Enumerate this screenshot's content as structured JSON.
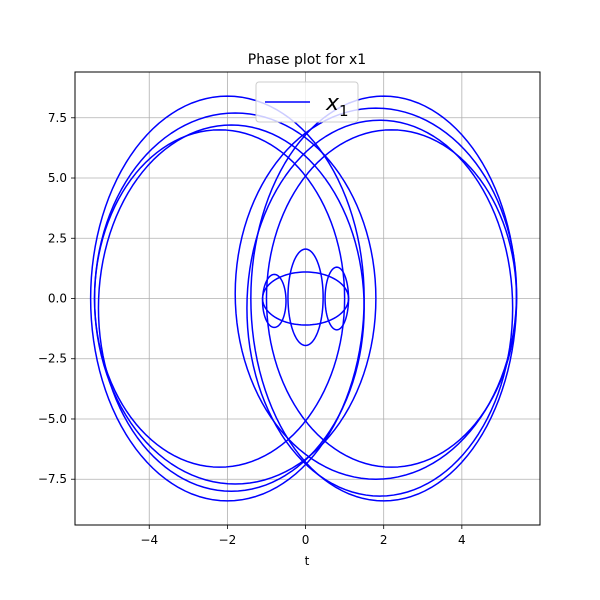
{
  "chart_data": {
    "type": "line",
    "title": "Phase plot for x1",
    "xlabel": "t",
    "ylabel": "",
    "xlim": [
      -5.9,
      6.0
    ],
    "ylim": [
      -9.4,
      9.4
    ],
    "grid": true,
    "legend": {
      "placement": "top-center"
    },
    "x_ticks": [
      -4,
      -2,
      0,
      2,
      4
    ],
    "x_tick_labels": [
      "−4",
      "−2",
      "0",
      "2",
      "4"
    ],
    "y_ticks": [
      -7.5,
      -5.0,
      -2.5,
      0.0,
      2.5,
      5.0,
      7.5
    ],
    "y_tick_labels": [
      "−7.5",
      "−5.0",
      "−2.5",
      "0.0",
      "2.5",
      "5.0",
      "7.5"
    ],
    "series": [
      {
        "name": "x_1",
        "color": "#0000ff",
        "loops": [
          {
            "cx": -2.0,
            "cy": 0.0,
            "rx": 3.5,
            "ry": 8.4
          },
          {
            "cx": -1.8,
            "cy": 0.0,
            "rx": 3.6,
            "ry": 7.7
          },
          {
            "cx": -1.9,
            "cy": -0.4,
            "rx": 3.4,
            "ry": 7.6
          },
          {
            "cx": -2.2,
            "cy": 0.0,
            "rx": 3.2,
            "ry": 7.0
          },
          {
            "cx": 2.0,
            "cy": 0.0,
            "rx": 3.4,
            "ry": 8.4
          },
          {
            "cx": 1.8,
            "cy": 0.2,
            "rx": 3.6,
            "ry": 7.7
          },
          {
            "cx": 1.9,
            "cy": -0.4,
            "rx": 3.4,
            "ry": 7.8
          },
          {
            "cx": 2.2,
            "cy": 0.0,
            "rx": 3.2,
            "ry": 7.0
          },
          {
            "cx": 0.0,
            "cy": 0.0,
            "rx": 1.1,
            "ry": 1.1
          },
          {
            "cx": 0.0,
            "cy": 0.05,
            "rx": 0.45,
            "ry": 2.0
          },
          {
            "cx": -0.8,
            "cy": -0.1,
            "rx": 0.3,
            "ry": 1.1
          },
          {
            "cx": 0.8,
            "cy": 0.0,
            "rx": 0.3,
            "ry": 1.3
          }
        ]
      }
    ]
  }
}
